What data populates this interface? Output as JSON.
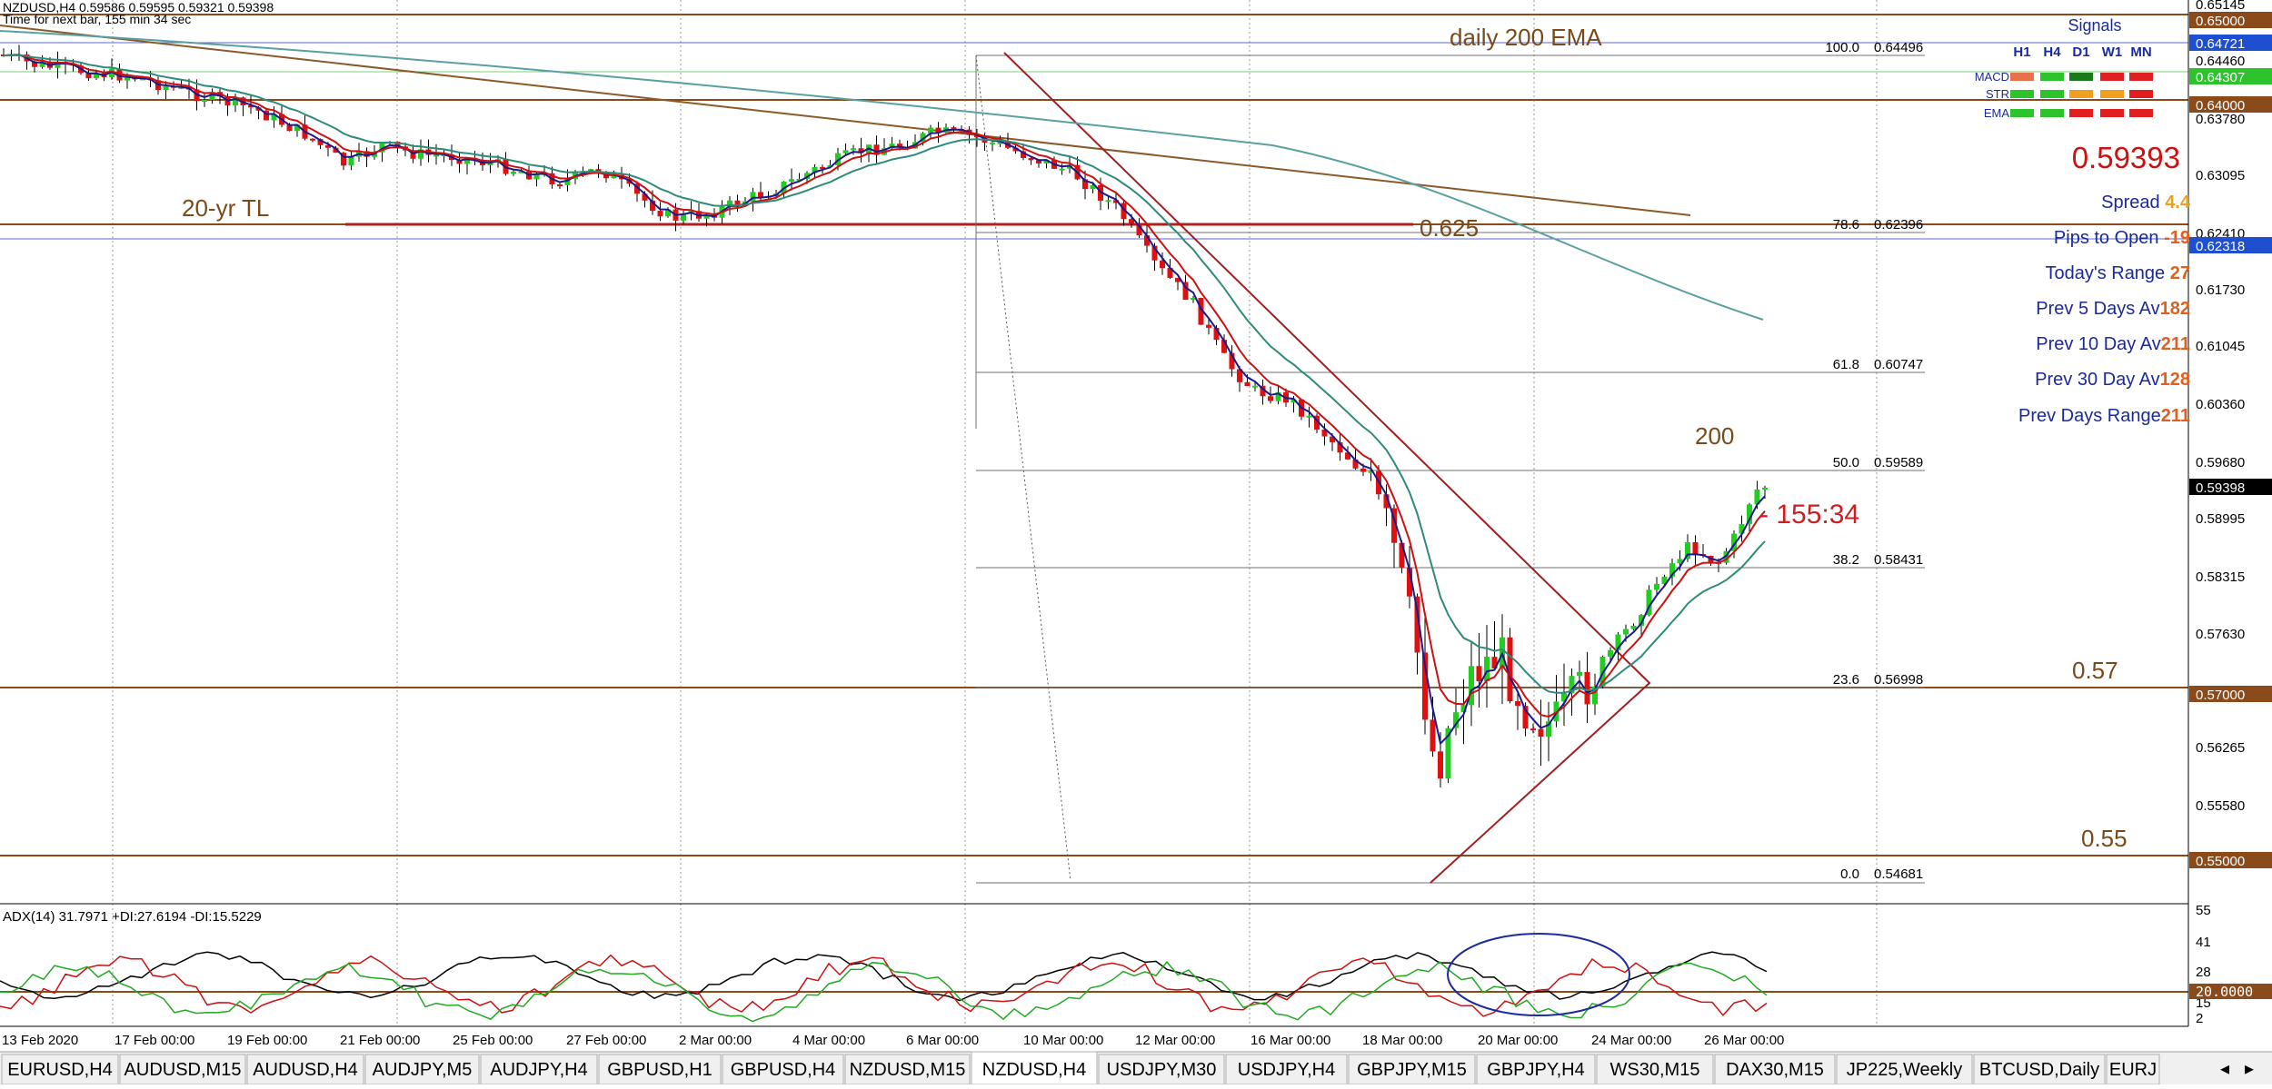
{
  "window": {
    "symbol_header": "NZDUSD,H4  0.59586 0.59595 0.59321 0.59398",
    "next_bar_text": "Time for next bar, 155 min 34 sec"
  },
  "annotations": {
    "daily_ema": "daily 200 EMA",
    "trendline_20yr": "20-yr TL",
    "level_625": "0.625",
    "label_200": "200",
    "countdown": "- 155:34",
    "level_057": "0.57",
    "level_055": "0.55"
  },
  "fibonacci": [
    {
      "label": "100.0",
      "price": "0.64496"
    },
    {
      "label": "78.6",
      "price": "0.62396"
    },
    {
      "label": "61.8",
      "price": "0.60747"
    },
    {
      "label": "50.0",
      "price": "0.59589"
    },
    {
      "label": "38.2",
      "price": "0.58431"
    },
    {
      "label": "23.6",
      "price": "0.56998"
    },
    {
      "label": "0.0",
      "price": "0.54681"
    }
  ],
  "signals_panel": {
    "title": "Signals",
    "timeframes": [
      "H1",
      "H4",
      "D1",
      "W1",
      "MN"
    ],
    "rows": [
      {
        "name": "MACD",
        "colors": [
          "#e8704a",
          "#2cc32c",
          "#1a7a1a",
          "#e02020",
          "#e02020"
        ]
      },
      {
        "name": "STR",
        "colors": [
          "#2cc32c",
          "#2cc32c",
          "#f0a020",
          "#f0a020",
          "#e02020"
        ]
      },
      {
        "name": "EMA",
        "colors": [
          "#2cc32c",
          "#2cc32c",
          "#e02020",
          "#e02020",
          "#e02020"
        ]
      }
    ],
    "price": "0.59393",
    "stats": [
      {
        "label": "Spread ",
        "value": "4.4",
        "value_color": "#f0a020"
      },
      {
        "label": "Pips to Open ",
        "value": "-19",
        "value_color": "#e06020"
      },
      {
        "label": "Today's Range ",
        "value": "27",
        "value_color": "#e06020"
      },
      {
        "label": "Prev 5 Days Av",
        "value": "182",
        "value_color": "#e06020"
      },
      {
        "label": "Prev 10 Day Av",
        "value": "211",
        "value_color": "#e06020"
      },
      {
        "label": "Prev 30 Day Av",
        "value": "128",
        "value_color": "#e06020"
      },
      {
        "label": "Prev Days Range",
        "value": "211",
        "value_color": "#e06020"
      }
    ]
  },
  "price_axis": {
    "ticks": [
      "0.65145",
      "0.64460",
      "0.63780",
      "0.63095",
      "0.62410",
      "0.61730",
      "0.61045",
      "0.60360",
      "0.59680",
      "0.58995",
      "0.58315",
      "0.57630",
      "0.56265",
      "0.55580"
    ],
    "boxes": [
      {
        "label": "0.65000",
        "bg": "#8b4a1a",
        "fg": "#ffffff"
      },
      {
        "label": "0.64721",
        "bg": "#1f4fd1",
        "fg": "#ffffff"
      },
      {
        "label": "0.64307",
        "bg": "#2cc32c",
        "fg": "#ffffff"
      },
      {
        "label": "0.64000",
        "bg": "#8b4a1a",
        "fg": "#ffffff"
      },
      {
        "label": "0.62318",
        "bg": "#1f4fd1",
        "fg": "#ffffff"
      },
      {
        "label": "0.59398",
        "bg": "#000000",
        "fg": "#ffffff"
      },
      {
        "label": "0.57000",
        "bg": "#8b4a1a",
        "fg": "#ffffff"
      },
      {
        "label": "0.55000",
        "bg": "#8b4a1a",
        "fg": "#ffffff"
      }
    ]
  },
  "adx": {
    "header": "ADX(14) 31.7971 +DI:27.6194 -DI:15.5229",
    "ticks": [
      "55",
      "41",
      "28",
      "15",
      "2"
    ],
    "level_box": "20.0000"
  },
  "time_axis": [
    "13 Feb 2020",
    "17 Feb 00:00",
    "19 Feb 00:00",
    "21 Feb 00:00",
    "25 Feb 00:00",
    "27 Feb 00:00",
    "2 Mar 00:00",
    "4 Mar 00:00",
    "6 Mar 00:00",
    "10 Mar 00:00",
    "12 Mar 00:00",
    "16 Mar 00:00",
    "18 Mar 00:00",
    "20 Mar 00:00",
    "24 Mar 00:00",
    "26 Mar 00:00"
  ],
  "tabs": [
    "EURUSD,H4",
    "AUDUSD,M15",
    "AUDUSD,H4",
    "AUDJPY,M5",
    "AUDJPY,H4",
    "GBPUSD,H1",
    "GBPUSD,H4",
    "NZDUSD,M15",
    "NZDUSD,H4",
    "USDJPY,M30",
    "USDJPY,H4",
    "GBPJPY,M15",
    "GBPJPY,H4",
    "WS30,M15",
    "DAX30,M15",
    "JP225,Weekly",
    "BTCUSD,Daily",
    "EURJ"
  ],
  "active_tab": "NZDUSD,H4",
  "tab_scroll_left": "◂",
  "tab_scroll_right": "▸",
  "colors": {
    "bull": "#22cc22",
    "bear": "#dd1111",
    "level_line": "#8b4a1a",
    "fib_line": "#707070",
    "ema_fast": "#1a1a8a",
    "ema_mid": "#cc1111",
    "ema_slow": "#2f8a7a",
    "ema_200": "#6aa0a0",
    "adx_line": "#000000",
    "di_plus": "#22aa22",
    "di_minus": "#cc1111"
  }
}
